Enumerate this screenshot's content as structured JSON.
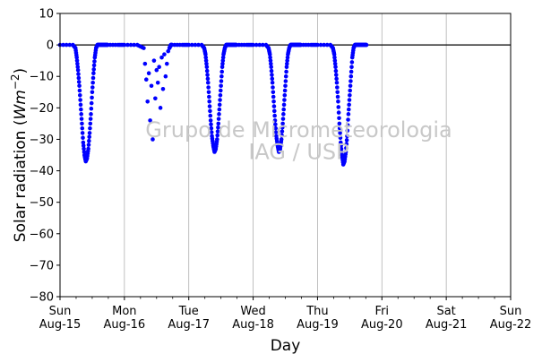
{
  "chart_data": {
    "type": "scatter",
    "title": "",
    "xlabel": "Day",
    "ylabel_main": "Solar radiation (",
    "ylabel_var": "Wm",
    "ylabel_exp": "−2",
    "ylabel_close": ")",
    "ylim": [
      -80,
      10
    ],
    "yticks": [
      10,
      0,
      -10,
      -20,
      -30,
      -40,
      -50,
      -60,
      -70,
      -80
    ],
    "ytick_labels": [
      "10",
      "0",
      "−10",
      "−20",
      "−30",
      "−40",
      "−50",
      "−60",
      "−70",
      "−80"
    ],
    "xlim_days": [
      0,
      7
    ],
    "xticks": [
      {
        "day": 0,
        "line1": "Sun",
        "line2": "Aug-15"
      },
      {
        "day": 1,
        "line1": "Mon",
        "line2": "Aug-16"
      },
      {
        "day": 2,
        "line1": "Tue",
        "line2": "Aug-17"
      },
      {
        "day": 3,
        "line1": "Wed",
        "line2": "Aug-18"
      },
      {
        "day": 4,
        "line1": "Thu",
        "line2": "Aug-19"
      },
      {
        "day": 5,
        "line1": "Fri",
        "line2": "Aug-20"
      },
      {
        "day": 6,
        "line1": "Sat",
        "line2": "Aug-21"
      },
      {
        "day": 7,
        "line1": "Sun",
        "line2": "Aug-22"
      }
    ],
    "vertical_grid": true,
    "zero_line": true,
    "marker_color": "#0000ff",
    "watermark_line1": "Grupo de Micrometeorologia",
    "watermark_line2": "IAG / USP",
    "series": [
      {
        "x_days": [
          0.0,
          0.2,
          0.24,
          0.26,
          0.28,
          0.3,
          0.32,
          0.34,
          0.36,
          0.38,
          0.4,
          0.42,
          0.44,
          0.46,
          0.48,
          0.5,
          0.52,
          0.54,
          0.56,
          0.58,
          0.6,
          0.62,
          0.64,
          0.66,
          0.68,
          0.7,
          0.72,
          0.74,
          0.9,
          1.0,
          1.2,
          1.3,
          1.32,
          1.34,
          1.36,
          1.38,
          1.4,
          1.42,
          1.44,
          1.46,
          1.48,
          1.5,
          1.52,
          1.54,
          1.56,
          1.58,
          1.6,
          1.62,
          1.64,
          1.66,
          1.68,
          1.7,
          1.72,
          1.74,
          1.9,
          2.0,
          2.2,
          2.24,
          2.26,
          2.28,
          2.3,
          2.32,
          2.34,
          2.36,
          2.38,
          2.4,
          2.42,
          2.44,
          2.46,
          2.48,
          2.5,
          2.52,
          2.54,
          2.56,
          2.58,
          2.6,
          2.62,
          2.64,
          2.66,
          2.68,
          2.7,
          2.72,
          2.74,
          2.9,
          3.0,
          3.2,
          3.24,
          3.26,
          3.28,
          3.3,
          3.32,
          3.34,
          3.36,
          3.38,
          3.4,
          3.42,
          3.44,
          3.46,
          3.48,
          3.5,
          3.52,
          3.54,
          3.56,
          3.58,
          3.6,
          3.62,
          3.64,
          3.66,
          3.68,
          3.7,
          3.72,
          3.74,
          3.9,
          4.0,
          4.2,
          4.24,
          4.26,
          4.28,
          4.3,
          4.32,
          4.34,
          4.36,
          4.38,
          4.4,
          4.42,
          4.44,
          4.46,
          4.48,
          4.5,
          4.52,
          4.54,
          4.56,
          4.58,
          4.6,
          4.62,
          4.64,
          4.66,
          4.68,
          4.7,
          4.72,
          4.74,
          4.76
        ],
        "y": [
          0,
          0,
          -1,
          -4,
          -8,
          -13,
          -19,
          -25,
          -31,
          -35,
          -37,
          -36,
          -33,
          -28,
          -22,
          -15,
          -9,
          -4,
          -1,
          0,
          0,
          0,
          0,
          0,
          0,
          0,
          0,
          0,
          0,
          0,
          0,
          -1,
          -6,
          -11,
          -18,
          -9,
          -24,
          -13,
          -30,
          -5,
          -17,
          -8,
          -12,
          -7,
          -20,
          -4,
          -14,
          -3,
          -10,
          -6,
          -2,
          -1,
          0,
          0,
          0,
          0,
          0,
          -1,
          -3,
          -7,
          -12,
          -18,
          -24,
          -29,
          -32,
          -34,
          -33,
          -30,
          -25,
          -19,
          -13,
          -7,
          -3,
          -1,
          0,
          0,
          0,
          0,
          0,
          0,
          0,
          0,
          0,
          0,
          0,
          0,
          -1,
          -3,
          -7,
          -12,
          -18,
          -24,
          -29,
          -32,
          -34,
          -33,
          -30,
          -25,
          -19,
          -13,
          -7,
          -3,
          -1,
          0,
          0,
          0,
          0,
          0,
          0,
          0,
          0,
          0,
          0,
          0,
          0,
          -1,
          -3,
          -7,
          -12,
          -18,
          -25,
          -31,
          -35,
          -38,
          -37,
          -34,
          -29,
          -22,
          -16,
          -10,
          -4,
          -1,
          0,
          0,
          0,
          0,
          0,
          0,
          0,
          0,
          0,
          0
        ]
      }
    ]
  }
}
